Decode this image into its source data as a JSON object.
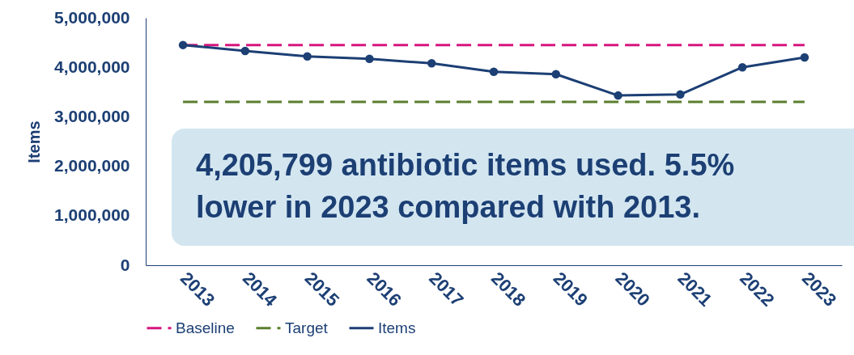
{
  "chart_data": {
    "type": "line",
    "ylabel": "Items",
    "categories": [
      "2013",
      "2014",
      "2015",
      "2016",
      "2017",
      "2018",
      "2019",
      "2020",
      "2021",
      "2022",
      "2023"
    ],
    "series": [
      {
        "name": "Baseline",
        "color": "#d6167f",
        "line_style": "dashed",
        "marker": "none",
        "values": [
          4450000,
          4450000,
          4450000,
          4450000,
          4450000,
          4450000,
          4450000,
          4450000,
          4450000,
          4450000,
          4450000
        ]
      },
      {
        "name": "Target",
        "color": "#5b7f2e",
        "line_style": "dashed",
        "marker": "none",
        "values": [
          3300000,
          3300000,
          3300000,
          3300000,
          3300000,
          3300000,
          3300000,
          3300000,
          3300000,
          3300000,
          3300000
        ]
      },
      {
        "name": "Items",
        "color": "#1c3f74",
        "line_style": "solid",
        "marker": "circle",
        "values": [
          4450000,
          4330000,
          4220000,
          4170000,
          4080000,
          3910000,
          3860000,
          3430000,
          3450000,
          4000000,
          4200000
        ]
      }
    ],
    "ylim": [
      0,
      5000000
    ],
    "yticks": [
      0,
      {
        "value": 1000000,
        "label": "1,000,000"
      },
      {
        "value": 2000000,
        "label": "2,000,000"
      },
      {
        "value": 3000000,
        "label": "3,000,000"
      },
      {
        "value": 4000000,
        "label": "4,000,000"
      },
      {
        "value": 5000000,
        "label": "5,000,000"
      }
    ],
    "grid": false,
    "legend": "bottom",
    "annotations": [
      "4,205,799 antibiotic items used. 5.5% lower in 2023 compared with 2013."
    ]
  }
}
